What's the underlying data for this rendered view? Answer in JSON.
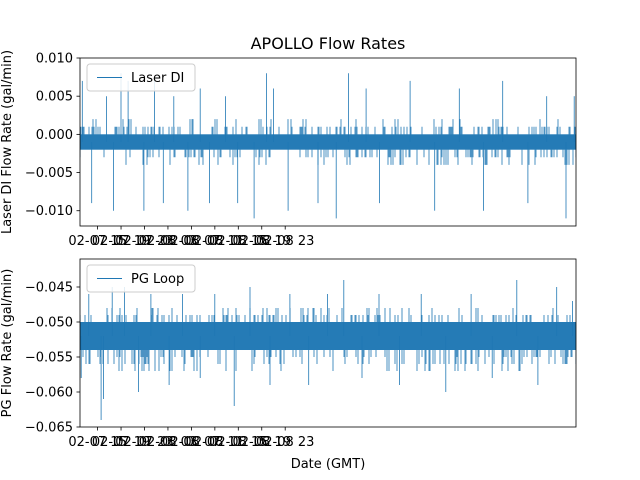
{
  "chart_data": [
    {
      "type": "line",
      "title": "APOLLO Flow Rates",
      "ylabel": "Laser DI Flow Rate (gal/min)",
      "xlabel": "",
      "legend": {
        "label": "Laser DI",
        "placement": "upper-left"
      },
      "color": "#1f77b4",
      "ylim": [
        -0.012,
        0.01
      ],
      "yticks": [
        0.01,
        0.005,
        0.0,
        -0.005,
        -0.01
      ],
      "ytick_labels": [
        "0.010",
        "0.005",
        "0.000",
        "−0.005",
        "−0.010"
      ],
      "x_range_hours": [
        12.0,
        96.6
      ],
      "xticks_hours": [
        15,
        19,
        23,
        27,
        31,
        35,
        39,
        43,
        47
      ],
      "xtick_labels": [
        "02-07 15",
        "02-07 19",
        "02-07 23",
        "02-08 03",
        "02-08 07",
        "02-08 11",
        "02-08 15",
        "02-08 19",
        "02-08 23"
      ],
      "series": {
        "name": "Laser DI",
        "sampling": "1 min resolution, quantized to 0.001 gal/min",
        "baseline": -0.001,
        "band_low": -0.002,
        "band_high": 0.0,
        "whisker_low": -0.004,
        "whisker_high": 0.002,
        "spikes": [
          {
            "t": 12.4,
            "v": 0.007
          },
          {
            "t": 14.0,
            "v": -0.009
          },
          {
            "t": 16.5,
            "v": 0.005
          },
          {
            "t": 17.7,
            "v": -0.01
          },
          {
            "t": 19.0,
            "v": 0.008
          },
          {
            "t": 20.2,
            "v": 0.007
          },
          {
            "t": 22.9,
            "v": -0.01
          },
          {
            "t": 24.7,
            "v": 0.007
          },
          {
            "t": 26.2,
            "v": -0.009
          },
          {
            "t": 28.0,
            "v": 0.005
          },
          {
            "t": 30.4,
            "v": -0.01
          },
          {
            "t": 32.5,
            "v": 0.006
          },
          {
            "t": 34.1,
            "v": -0.009
          },
          {
            "t": 36.8,
            "v": 0.005
          },
          {
            "t": 38.9,
            "v": -0.009
          },
          {
            "t": 41.7,
            "v": -0.011
          },
          {
            "t": 43.8,
            "v": 0.008
          },
          {
            "t": 45.0,
            "v": 0.006
          },
          {
            "t": 47.5,
            "v": -0.01
          },
          {
            "t": 52.6,
            "v": -0.009
          },
          {
            "t": 55.7,
            "v": -0.011
          },
          {
            "t": 57.8,
            "v": 0.008
          },
          {
            "t": 60.8,
            "v": 0.006
          },
          {
            "t": 63.1,
            "v": -0.009
          },
          {
            "t": 68.3,
            "v": 0.007
          },
          {
            "t": 72.5,
            "v": -0.01
          },
          {
            "t": 76.7,
            "v": 0.006
          },
          {
            "t": 80.8,
            "v": -0.01
          },
          {
            "t": 84.1,
            "v": 0.007
          },
          {
            "t": 88.4,
            "v": -0.009
          },
          {
            "t": 91.6,
            "v": 0.005
          },
          {
            "t": 94.9,
            "v": -0.011
          },
          {
            "t": 96.3,
            "v": 0.005
          }
        ]
      }
    },
    {
      "type": "line",
      "title": "",
      "ylabel": "PG Flow Rate (gal/min)",
      "xlabel": "Date (GMT)",
      "legend": {
        "label": "PG Loop",
        "placement": "upper-left"
      },
      "color": "#1f77b4",
      "ylim": [
        -0.065,
        -0.041
      ],
      "yticks": [
        -0.045,
        -0.05,
        -0.055,
        -0.06,
        -0.065
      ],
      "ytick_labels": [
        "−0.045",
        "−0.050",
        "−0.055",
        "−0.060",
        "−0.065"
      ],
      "x_range_hours": [
        12.0,
        96.6
      ],
      "xticks_hours": [
        15,
        19,
        23,
        27,
        31,
        35,
        39,
        43,
        47
      ],
      "xtick_labels": [
        "02-07 15",
        "02-07 19",
        "02-07 23",
        "02-08 03",
        "02-08 07",
        "02-08 11",
        "02-08 15",
        "02-08 19",
        "02-08 23"
      ],
      "series": {
        "name": "PG Loop",
        "sampling": "1 min resolution, quantized to 0.001 gal/min",
        "baseline": -0.052,
        "band_low": -0.054,
        "band_high": -0.05,
        "whisker_low": -0.057,
        "whisker_high": -0.048,
        "spikes": [
          {
            "t": 12.2,
            "v": -0.058
          },
          {
            "t": 13.5,
            "v": -0.046
          },
          {
            "t": 15.6,
            "v": -0.064
          },
          {
            "t": 16.0,
            "v": -0.061
          },
          {
            "t": 17.5,
            "v": -0.045
          },
          {
            "t": 19.6,
            "v": -0.045
          },
          {
            "t": 22.0,
            "v": -0.06
          },
          {
            "t": 24.1,
            "v": -0.046
          },
          {
            "t": 27.2,
            "v": -0.059
          },
          {
            "t": 29.5,
            "v": -0.046
          },
          {
            "t": 32.5,
            "v": -0.058
          },
          {
            "t": 35.0,
            "v": -0.046
          },
          {
            "t": 38.3,
            "v": -0.062
          },
          {
            "t": 41.0,
            "v": -0.045
          },
          {
            "t": 44.4,
            "v": -0.059
          },
          {
            "t": 47.8,
            "v": -0.046
          },
          {
            "t": 51.0,
            "v": -0.059
          },
          {
            "t": 54.2,
            "v": -0.046
          },
          {
            "t": 57.0,
            "v": -0.044
          },
          {
            "t": 60.1,
            "v": -0.058
          },
          {
            "t": 63.0,
            "v": -0.046
          },
          {
            "t": 66.5,
            "v": -0.059
          },
          {
            "t": 70.2,
            "v": -0.046
          },
          {
            "t": 74.4,
            "v": -0.06
          },
          {
            "t": 78.7,
            "v": -0.046
          },
          {
            "t": 82.3,
            "v": -0.058
          },
          {
            "t": 86.5,
            "v": -0.044
          },
          {
            "t": 90.1,
            "v": -0.059
          },
          {
            "t": 93.3,
            "v": -0.045
          },
          {
            "t": 96.0,
            "v": -0.047
          }
        ]
      }
    }
  ]
}
